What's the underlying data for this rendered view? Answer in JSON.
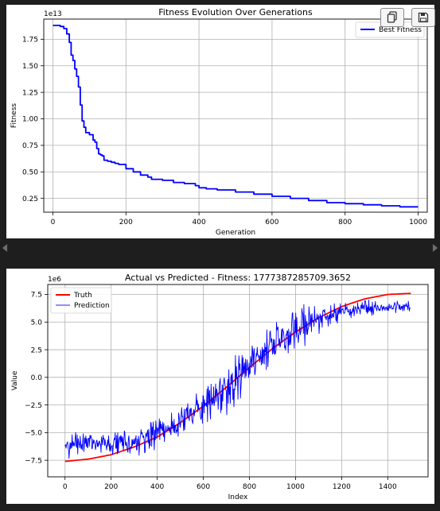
{
  "toolbar": {
    "copy_icon": "copy-icon",
    "save_icon": "save-icon"
  },
  "chart_data": [
    {
      "type": "line",
      "title": "Fitness Evolution Over Generations",
      "xlabel": "Generation",
      "ylabel": "Fitness",
      "y_offset_label": "1e13",
      "xlim": [
        -25,
        1025
      ],
      "ylim": [
        0.12,
        1.94
      ],
      "x_ticks": [
        0,
        200,
        400,
        600,
        800,
        1000
      ],
      "y_ticks": [
        0.25,
        0.5,
        0.75,
        1.0,
        1.25,
        1.5,
        1.75
      ],
      "y_tick_labels": [
        "0.25",
        "0.50",
        "0.75",
        "1.00",
        "1.25",
        "1.50",
        "1.75"
      ],
      "grid": true,
      "legend_position": "top-right",
      "series": [
        {
          "name": "Best Fitness",
          "color": "#0000ff",
          "x": [
            0,
            10,
            20,
            30,
            38,
            45,
            50,
            55,
            60,
            65,
            70,
            75,
            78,
            80,
            85,
            90,
            100,
            110,
            115,
            120,
            125,
            130,
            135,
            140,
            150,
            160,
            170,
            180,
            200,
            220,
            240,
            260,
            270,
            280,
            300,
            330,
            360,
            390,
            400,
            420,
            450,
            500,
            550,
            600,
            650,
            700,
            750,
            800,
            850,
            880,
            900,
            950,
            1000
          ],
          "y": [
            1.88,
            1.88,
            1.87,
            1.85,
            1.8,
            1.72,
            1.6,
            1.55,
            1.47,
            1.4,
            1.3,
            1.13,
            1.13,
            0.98,
            0.92,
            0.87,
            0.85,
            0.8,
            0.78,
            0.72,
            0.67,
            0.66,
            0.65,
            0.61,
            0.6,
            0.59,
            0.58,
            0.57,
            0.53,
            0.5,
            0.47,
            0.45,
            0.43,
            0.43,
            0.42,
            0.4,
            0.39,
            0.37,
            0.35,
            0.34,
            0.33,
            0.31,
            0.29,
            0.27,
            0.25,
            0.23,
            0.21,
            0.2,
            0.19,
            0.19,
            0.18,
            0.17,
            0.17
          ]
        }
      ]
    },
    {
      "type": "line",
      "title": "Actual vs Predicted - Fitness: 1777387285709.3652",
      "xlabel": "Index",
      "ylabel": "Value",
      "y_offset_label": "1e6",
      "xlim": [
        -75,
        1575
      ],
      "ylim": [
        -9.0,
        8.4
      ],
      "x_ticks": [
        0,
        200,
        400,
        600,
        800,
        1000,
        1200,
        1400
      ],
      "y_ticks": [
        -7.5,
        -5.0,
        -2.5,
        0.0,
        2.5,
        5.0,
        7.5
      ],
      "y_tick_labels": [
        "−7.5",
        "−5.0",
        "−2.5",
        "0.0",
        "2.5",
        "5.0",
        "7.5"
      ],
      "grid": true,
      "legend_position": "top-left",
      "series": [
        {
          "name": "Truth",
          "color": "#ff0000",
          "x": [
            0,
            100,
            200,
            300,
            400,
            500,
            600,
            700,
            800,
            900,
            1000,
            1100,
            1200,
            1300,
            1400,
            1500
          ],
          "y": [
            -7.6,
            -7.4,
            -7.0,
            -6.3,
            -5.4,
            -4.1,
            -2.6,
            -0.9,
            0.9,
            2.6,
            4.1,
            5.4,
            6.4,
            7.1,
            7.5,
            7.6
          ]
        },
        {
          "name": "Prediction",
          "color": "#0000ff",
          "x": [
            0,
            100,
            200,
            300,
            400,
            500,
            600,
            700,
            800,
            900,
            1000,
            1100,
            1200,
            1300,
            1400,
            1500
          ],
          "y": [
            -6.2,
            -6.0,
            -6.0,
            -5.8,
            -5.0,
            -4.0,
            -2.5,
            -1.0,
            1.0,
            2.7,
            4.3,
            5.5,
            6.0,
            6.2,
            6.3,
            6.4
          ],
          "noise_amplitude": [
            1.2,
            1.4,
            1.3,
            1.6,
            2.0,
            2.4,
            2.8,
            3.0,
            3.0,
            2.8,
            2.4,
            1.8,
            1.2,
            0.8,
            0.7,
            0.6
          ]
        }
      ]
    }
  ]
}
